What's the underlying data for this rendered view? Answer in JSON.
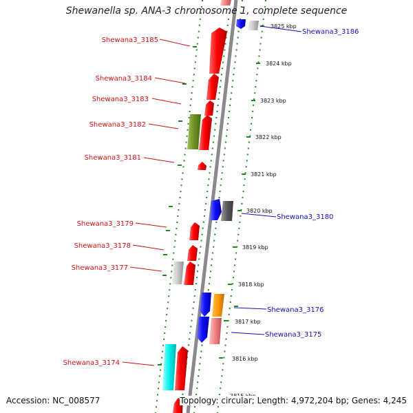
{
  "title": "Shewanella sp. ANA-3 chromosome 1, complete sequence",
  "footer": {
    "accession": "Accession: NC_008577",
    "topology": "Topology: circular; Length: 4,972,204 bp; Genes: 4,245"
  },
  "colors": {
    "left_label": "#d01010",
    "right_label": "#1010c0",
    "backbone": "#8a8a8a",
    "dotted_track": "#1a8a1a"
  },
  "ruler": [
    {
      "label": "3825 kbp"
    },
    {
      "label": "3824 kbp"
    },
    {
      "label": "3823 kbp"
    },
    {
      "label": "3822 kbp"
    },
    {
      "label": "3821 kbp"
    },
    {
      "label": "3820 kbp"
    },
    {
      "label": "3819 kbp"
    },
    {
      "label": "3818 kbp"
    },
    {
      "label": "3817 kbp"
    },
    {
      "label": "3816 kbp"
    },
    {
      "label": "3815 kbp"
    }
  ],
  "genes_left": [
    {
      "name": "Shewana3_3185"
    },
    {
      "name": "Shewana3_3184"
    },
    {
      "name": "Shewana3_3183"
    },
    {
      "name": "Shewana3_3182"
    },
    {
      "name": "Shewana3_3181"
    },
    {
      "name": "Shewana3_3179"
    },
    {
      "name": "Shewana3_3178"
    },
    {
      "name": "Shewana3_3177"
    },
    {
      "name": "Shewana3_3174"
    }
  ],
  "genes_right": [
    {
      "name": "Shewana3_3186"
    },
    {
      "name": "Shewana3_3180"
    },
    {
      "name": "Shewana3_3176"
    },
    {
      "name": "Shewana3_3175"
    }
  ]
}
